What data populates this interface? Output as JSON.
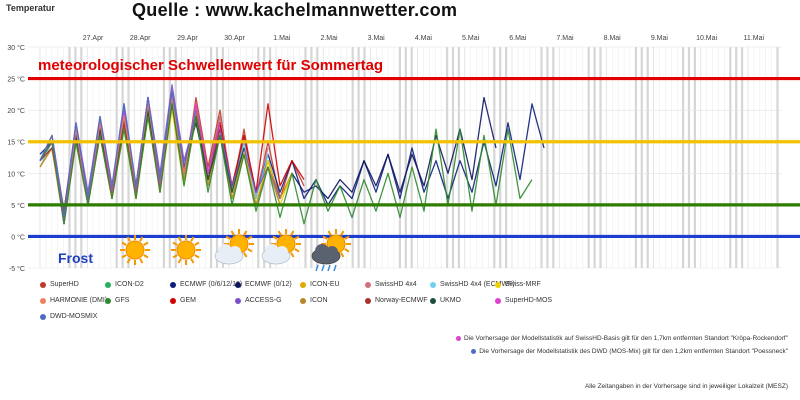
{
  "header": {
    "axis_title": "Temperatur",
    "source": "Quelle : www.kachelmannwetter.com"
  },
  "annotations": {
    "summer_threshold": "meteorologischer Schwellenwert für Sommertag",
    "frost": "Frost"
  },
  "chart_data": {
    "type": "line",
    "ylim": [
      -5,
      30
    ],
    "y_ticks": [
      "30 °C",
      "25 °C",
      "20 °C",
      "15 °C",
      "10 °C",
      "5 °C",
      "0 °C",
      "-5 °C"
    ],
    "x_labels": [
      "27.Apr",
      "28.Apr",
      "29.Apr",
      "30.Apr",
      "1.Mai",
      "2.Mai",
      "3.Mai",
      "4.Mai",
      "5.Mai",
      "6.Mai",
      "7.Mai",
      "8.Mai",
      "9.Mai",
      "10.Mai",
      "11.Mai"
    ],
    "reference_lines": [
      {
        "value": 25,
        "color": "#e00000"
      },
      {
        "value": 15,
        "color": "#f2c200"
      },
      {
        "value": 5,
        "color": "#2e7d00"
      },
      {
        "value": 0,
        "color": "#1a3fd0"
      }
    ],
    "weather_icons": [
      "sun",
      "sun",
      "sun-cloud",
      "sun-cloud",
      "sun-cloud-rain"
    ],
    "series": [
      {
        "name": "SuperHD",
        "color": "#c0392b",
        "values": [
          12,
          15,
          3,
          17,
          6,
          18,
          8,
          19,
          8,
          22,
          8,
          23,
          9,
          22,
          11,
          20,
          7,
          17,
          6,
          15,
          6,
          12,
          8
        ]
      },
      {
        "name": "ICON-D2",
        "color": "#27ae60",
        "values": [
          12,
          15,
          2,
          16,
          5,
          18,
          7,
          20,
          7,
          21,
          8,
          22,
          9,
          21,
          10,
          19
        ]
      },
      {
        "name": "ECMWF (0/6/12/18)",
        "color": "#0b1f7a",
        "values": [
          13,
          15,
          4,
          17,
          6,
          17,
          7,
          18,
          7,
          20,
          8,
          22,
          10,
          20,
          9,
          18,
          7,
          16,
          7,
          13,
          7,
          12,
          6,
          9,
          5,
          8,
          6,
          12,
          7,
          13,
          6,
          14,
          7,
          12,
          6,
          12,
          7,
          15,
          8,
          18,
          9,
          21,
          14
        ]
      },
      {
        "name": "ECMWF (0/12)",
        "color": "#0e1560",
        "values": [
          12,
          14,
          3,
          16,
          5,
          17,
          6,
          18,
          7,
          20,
          8,
          21,
          11,
          18,
          9,
          17,
          8,
          15,
          7,
          12,
          6,
          10,
          7,
          8,
          6,
          9,
          7,
          12,
          8,
          13,
          7,
          13,
          8,
          16,
          10,
          17,
          9,
          22,
          14
        ]
      },
      {
        "name": "ICON-EU",
        "color": "#e0a800",
        "values": [
          11,
          14,
          2,
          15,
          5,
          16,
          6,
          18,
          6,
          20,
          7,
          23,
          9,
          21,
          8,
          17,
          6,
          14,
          5,
          12,
          6,
          10
        ]
      },
      {
        "name": "SwissHD 4x4",
        "color": "#d4707a",
        "values": [
          12,
          15,
          3,
          17,
          6,
          18,
          8,
          19,
          8,
          22,
          9,
          23,
          10,
          21,
          10,
          19,
          8,
          16,
          7,
          14
        ]
      },
      {
        "name": "SwissHD 4x4 (ECMWF)",
        "color": "#6fd0f0",
        "values": [
          11,
          15,
          3,
          16,
          6,
          17,
          7,
          19,
          8,
          21,
          8,
          22,
          9,
          20,
          9,
          17,
          7,
          15,
          6,
          13
        ]
      },
      {
        "name": "Swiss-MRF",
        "color": "#f0d000",
        "values": [
          11,
          14,
          3,
          15,
          5,
          16,
          6,
          17,
          6,
          19,
          7,
          20,
          8,
          19,
          8,
          16,
          6,
          13,
          5,
          12,
          5,
          10
        ]
      },
      {
        "name": "GEM",
        "color": "#d40000",
        "values": [
          12,
          15,
          4,
          17,
          6,
          18,
          8,
          19,
          8,
          21,
          9,
          22,
          11,
          20,
          10,
          18,
          8,
          16,
          7,
          21,
          8,
          12,
          9
        ]
      },
      {
        "name": "ACCESS-G",
        "color": "#7b4fc9",
        "values": [
          12,
          16,
          4,
          18,
          7,
          19,
          8,
          21,
          8,
          22,
          10,
          24,
          12,
          19,
          10,
          17,
          8,
          14,
          7,
          11,
          6
        ]
      },
      {
        "name": "ICON",
        "color": "#b8872a",
        "values": [
          11,
          14,
          2,
          15,
          5,
          16,
          6,
          18,
          6,
          20,
          7,
          22,
          9,
          20,
          8,
          16,
          6,
          13,
          5,
          11,
          5
        ]
      },
      {
        "name": "Norway-ECMWF",
        "color": "#a83232",
        "values": [
          12,
          14,
          4,
          16,
          6,
          17,
          7,
          18,
          8,
          20,
          8,
          21,
          10,
          19,
          9,
          17
        ]
      },
      {
        "name": "UKMO",
        "color": "#1f4f3a",
        "values": [
          12,
          15,
          3,
          16,
          6,
          17,
          7,
          19,
          7,
          20,
          9,
          21,
          10,
          19,
          9,
          16,
          7,
          14
        ]
      },
      {
        "name": "SuperHD-MOS",
        "color": "#e040d0",
        "values": [
          12,
          15,
          2,
          17,
          5,
          18,
          7,
          20,
          7,
          22,
          8,
          23,
          10,
          21,
          10,
          18
        ]
      },
      {
        "name": "HARMONIE (DMI)",
        "color": "#f08060",
        "values": [
          12,
          16,
          3,
          17,
          6,
          18,
          8,
          19,
          8,
          21,
          9,
          22,
          10,
          20
        ]
      },
      {
        "name": "GFS",
        "color": "#2d8a2d",
        "values": [
          12,
          15,
          2,
          15,
          5,
          16,
          6,
          17,
          6,
          19,
          7,
          21,
          8,
          19,
          7,
          16,
          5,
          13,
          4,
          11,
          3,
          10,
          2,
          9,
          4,
          8,
          3,
          9,
          4,
          10,
          3,
          11,
          4,
          17,
          5,
          17,
          4,
          16,
          5,
          17,
          6,
          9
        ]
      },
      {
        "name": "DWD-MOSMIX",
        "color": "#4a6fc0",
        "values": [
          12,
          16,
          3,
          18,
          6,
          19,
          8,
          21,
          8,
          22,
          9,
          23,
          11,
          20
        ]
      }
    ]
  },
  "legend": [
    "SuperHD",
    "ICON-D2",
    "ECMWF (0/6/12/18)",
    "ECMWF (0/12)",
    "ICON-EU",
    "SwissHD 4x4",
    "SwissHD 4x4 (ECMWF)",
    "Swiss-MRF",
    "HARMONIE (DMI)",
    "GFS",
    "GEM",
    "ACCESS-G",
    "ICON",
    "Norway-ECMWF",
    "UKMO",
    "SuperHD-MOS",
    "DWD-MOSMIX"
  ],
  "notes": {
    "note1": "Die Vorhersage der Modellstatistik auf SwissHD-Basis gilt für den 1,7km entfernten Standort \"Kröpa-Rockendorf\"",
    "note1_color": "#e040d0",
    "note2": "Die Vorhersage der Modellstatistik des DWD (MOS-Mix) gilt für den 1,2km entfernten Standort \"Poessneck\"",
    "note2_color": "#4a6fc0",
    "time_note": "Alle Zeitangaben in der Vorhersage sind in jeweiliger Lokalzeit (MESZ)"
  }
}
